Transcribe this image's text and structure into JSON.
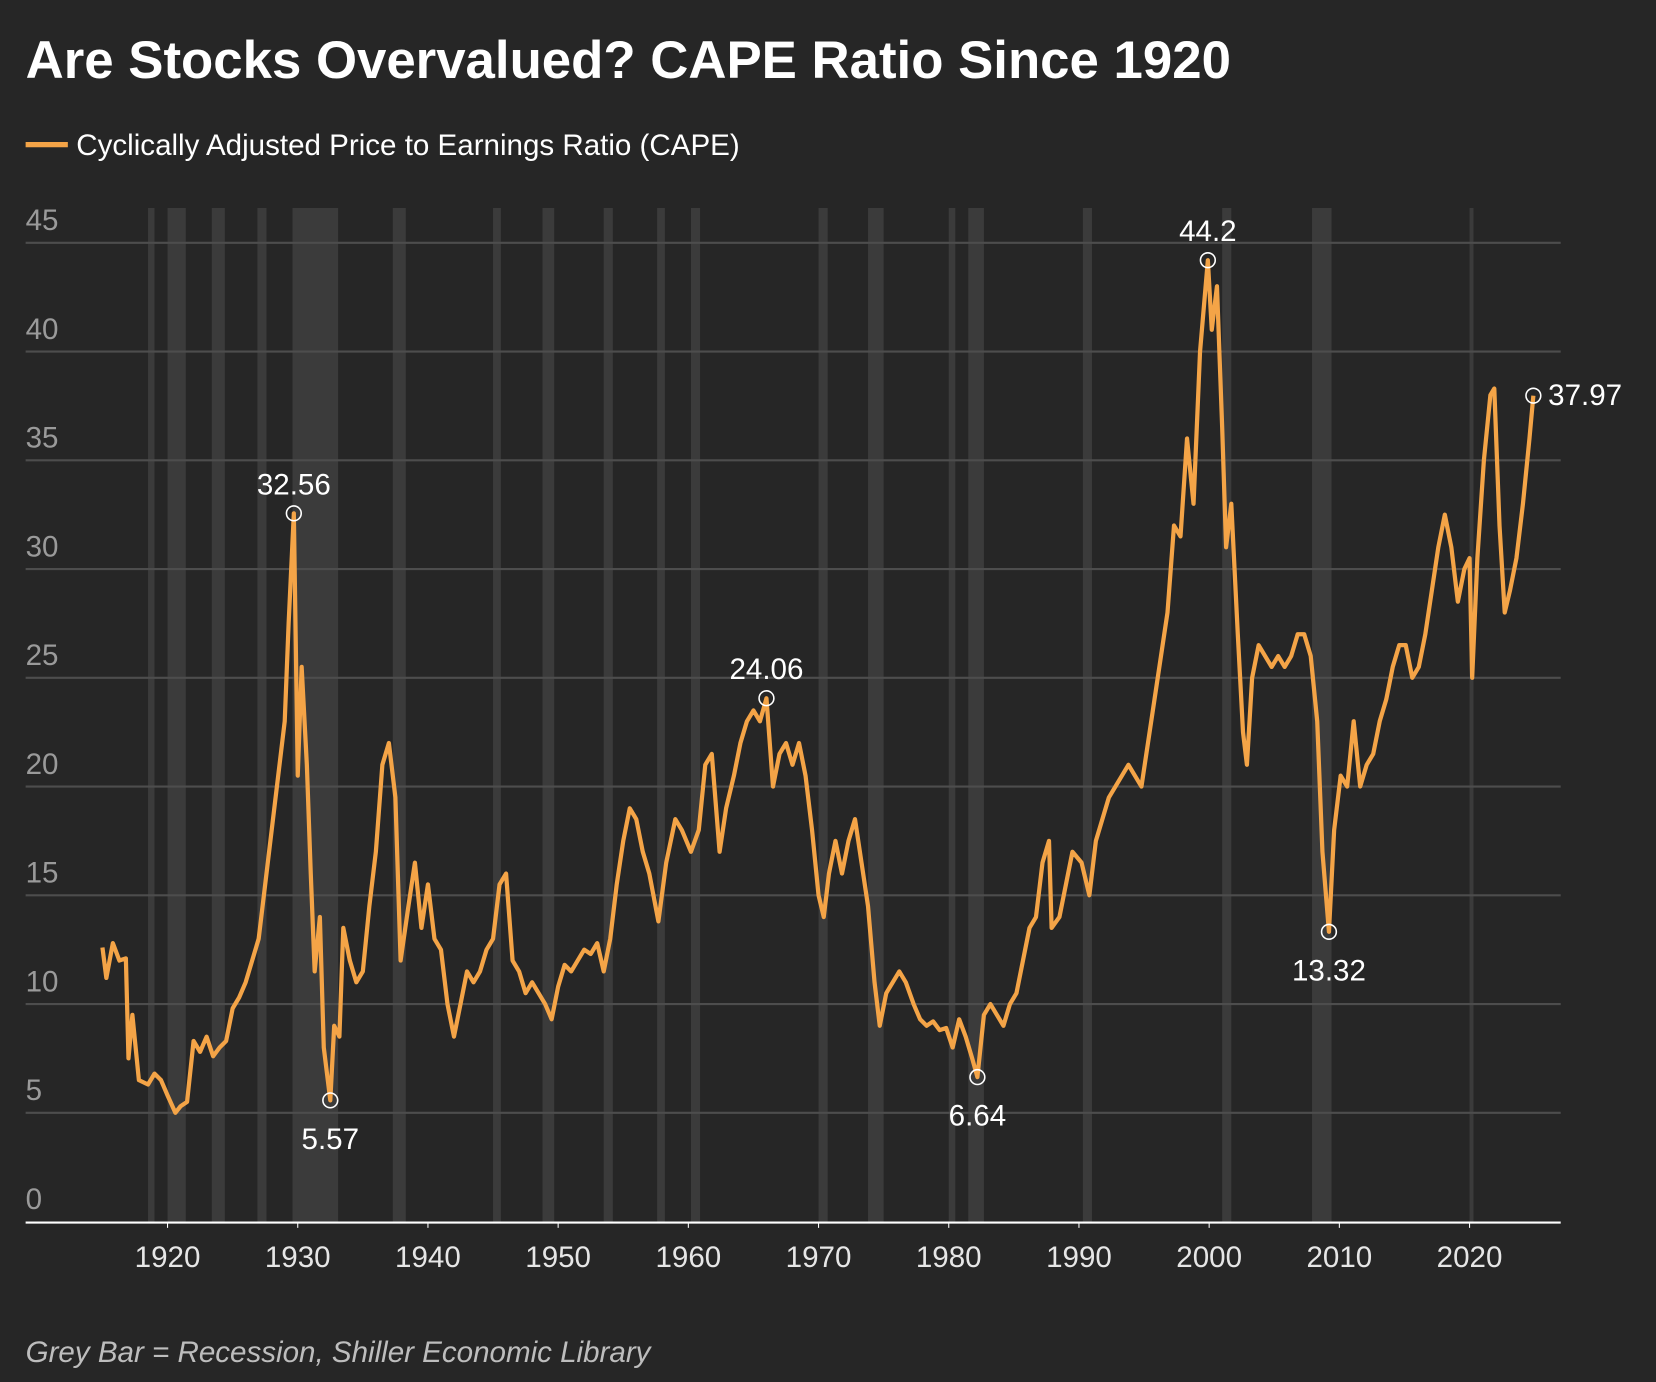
{
  "chart_data": {
    "type": "line",
    "title": "Are Stocks Overvalued? CAPE Ratio Since 1920",
    "footnote": "Grey Bar = Recession, Shiller Economic Library",
    "xlim": [
      1909.1,
      2027
    ],
    "xticks": [
      1920,
      1930,
      1940,
      1950,
      1960,
      1970,
      1980,
      1990,
      2000,
      2010,
      2020
    ],
    "ylim": [
      0,
      46.6
    ],
    "yticks": [
      0,
      5,
      10,
      15,
      20,
      25,
      30,
      35,
      40,
      45
    ],
    "grid": true,
    "legend": "top-left",
    "recession_color": "#3b3b3b",
    "recessions": [
      [
        1918.5,
        1919.0
      ],
      [
        1920.0,
        1921.4
      ],
      [
        1923.4,
        1924.4
      ],
      [
        1926.9,
        1927.6
      ],
      [
        1929.6,
        1933.1
      ],
      [
        1937.3,
        1938.3
      ],
      [
        1945.0,
        1945.6
      ],
      [
        1948.8,
        1949.7
      ],
      [
        1953.5,
        1954.2
      ],
      [
        1957.6,
        1958.2
      ],
      [
        1960.2,
        1960.9
      ],
      [
        1970.0,
        1970.7
      ],
      [
        1973.8,
        1975.0
      ],
      [
        1980.0,
        1980.5
      ],
      [
        1981.5,
        1982.7
      ],
      [
        1990.3,
        1991.0
      ],
      [
        2001.0,
        2001.7
      ],
      [
        2007.9,
        2009.4
      ],
      [
        2020.0,
        2020.3
      ]
    ],
    "x": [
      1915.0,
      1915.3,
      1915.8,
      1916.3,
      1916.8,
      1917.0,
      1917.3,
      1917.8,
      1918.5,
      1919.0,
      1919.5,
      1920.0,
      1920.6,
      1921.0,
      1921.5,
      1922.0,
      1922.5,
      1923.0,
      1923.5,
      1924.0,
      1924.5,
      1925.0,
      1925.5,
      1926.0,
      1926.5,
      1927.0,
      1927.5,
      1928.0,
      1928.5,
      1929.0,
      1929.3,
      1929.7,
      1930.0,
      1930.3,
      1930.7,
      1931.0,
      1931.3,
      1931.7,
      1932.0,
      1932.5,
      1932.8,
      1933.2,
      1933.5,
      1934.0,
      1934.5,
      1935.0,
      1935.5,
      1936.0,
      1936.5,
      1937.0,
      1937.5,
      1937.9,
      1938.5,
      1939.0,
      1939.5,
      1940.0,
      1940.5,
      1941.0,
      1941.5,
      1942.0,
      1942.5,
      1943.0,
      1943.5,
      1944.0,
      1944.5,
      1945.0,
      1945.5,
      1946.0,
      1946.5,
      1947.0,
      1947.5,
      1948.0,
      1948.5,
      1949.0,
      1949.5,
      1950.0,
      1950.5,
      1951.0,
      1951.5,
      1952.0,
      1952.5,
      1953.0,
      1953.5,
      1954.0,
      1954.5,
      1955.0,
      1955.5,
      1956.0,
      1956.5,
      1957.0,
      1957.7,
      1958.3,
      1959.0,
      1959.5,
      1960.2,
      1960.8,
      1961.3,
      1961.8,
      1962.4,
      1962.9,
      1963.5,
      1964.0,
      1964.5,
      1965.0,
      1965.5,
      1966.0,
      1966.5,
      1967.0,
      1967.5,
      1968.0,
      1968.5,
      1969.0,
      1969.5,
      1970.0,
      1970.4,
      1970.8,
      1971.3,
      1971.8,
      1972.3,
      1972.8,
      1973.3,
      1973.8,
      1974.3,
      1974.7,
      1975.2,
      1975.7,
      1976.2,
      1976.7,
      1977.3,
      1977.8,
      1978.3,
      1978.8,
      1979.3,
      1979.8,
      1980.3,
      1980.8,
      1981.3,
      1981.8,
      1982.2,
      1982.7,
      1983.2,
      1983.7,
      1984.2,
      1984.7,
      1985.2,
      1985.7,
      1986.2,
      1986.7,
      1987.2,
      1987.7,
      1987.9,
      1988.5,
      1989.0,
      1989.5,
      1990.2,
      1990.8,
      1991.3,
      1991.8,
      1992.3,
      1992.8,
      1993.3,
      1993.8,
      1994.3,
      1994.8,
      1995.3,
      1995.8,
      1996.3,
      1996.8,
      1997.3,
      1997.8,
      1998.3,
      1998.8,
      1999.3,
      1999.9,
      2000.2,
      2000.6,
      2001.0,
      2001.3,
      2001.7,
      2002.2,
      2002.6,
      2002.9,
      2003.3,
      2003.8,
      2004.3,
      2004.8,
      2005.3,
      2005.8,
      2006.3,
      2006.8,
      2007.3,
      2007.8,
      2008.3,
      2008.7,
      2009.2,
      2009.6,
      2010.1,
      2010.6,
      2011.1,
      2011.6,
      2012.1,
      2012.6,
      2013.1,
      2013.6,
      2014.1,
      2014.6,
      2015.1,
      2015.6,
      2016.1,
      2016.6,
      2017.1,
      2017.6,
      2018.1,
      2018.6,
      2019.1,
      2019.6,
      2020.0,
      2020.2,
      2020.6,
      2021.1,
      2021.6,
      2021.9,
      2022.3,
      2022.7,
      2023.1,
      2023.6,
      2024.1,
      2024.6,
      2024.9
    ],
    "series": [
      {
        "name": "Cyclically Adjusted Price to Earnings Ratio (CAPE)",
        "color": "#f4a447",
        "values": [
          12.6,
          11.2,
          12.8,
          12.0,
          12.1,
          7.5,
          9.5,
          6.5,
          6.3,
          6.8,
          6.5,
          5.8,
          5.0,
          5.3,
          5.5,
          8.3,
          7.8,
          8.5,
          7.6,
          8.0,
          8.3,
          9.8,
          10.3,
          11.0,
          12.0,
          13.0,
          15.5,
          18.0,
          20.5,
          23.0,
          27.5,
          32.56,
          20.5,
          25.5,
          21.0,
          16.0,
          11.5,
          14.0,
          8.0,
          5.57,
          9.0,
          8.5,
          13.5,
          12.0,
          11.0,
          11.5,
          14.5,
          17.0,
          21.0,
          22.0,
          19.5,
          12.0,
          14.5,
          16.5,
          13.5,
          15.5,
          13.0,
          12.5,
          10.0,
          8.5,
          10.0,
          11.5,
          11.0,
          11.5,
          12.5,
          13.0,
          15.5,
          16.0,
          12.0,
          11.5,
          10.5,
          11.0,
          10.5,
          10.0,
          9.3,
          10.8,
          11.8,
          11.5,
          12.0,
          12.5,
          12.3,
          12.8,
          11.5,
          13.0,
          15.5,
          17.5,
          19.0,
          18.5,
          17.0,
          16.0,
          13.8,
          16.5,
          18.5,
          18.0,
          17.0,
          18.0,
          21.0,
          21.5,
          17.0,
          19.0,
          20.5,
          22.0,
          23.0,
          23.5,
          23.0,
          24.06,
          20.0,
          21.5,
          22.0,
          21.0,
          22.0,
          20.5,
          18.0,
          15.0,
          14.0,
          16.0,
          17.5,
          16.0,
          17.5,
          18.5,
          16.5,
          14.5,
          11.0,
          9.0,
          10.5,
          11.0,
          11.5,
          11.0,
          10.0,
          9.3,
          9.0,
          9.2,
          8.8,
          8.9,
          8.0,
          9.3,
          8.5,
          7.5,
          6.64,
          9.5,
          10.0,
          9.5,
          9.0,
          10.0,
          10.5,
          12.0,
          13.5,
          14.0,
          16.5,
          17.5,
          13.5,
          14.0,
          15.5,
          17.0,
          16.5,
          15.0,
          17.5,
          18.5,
          19.5,
          20.0,
          20.5,
          21.0,
          20.5,
          20.0,
          22.0,
          24.0,
          26.0,
          28.0,
          32.0,
          31.5,
          36.0,
          33.0,
          40.0,
          44.2,
          41.0,
          43.0,
          36.5,
          31.0,
          33.0,
          27.0,
          22.5,
          21.0,
          25.0,
          26.5,
          26.0,
          25.5,
          26.0,
          25.5,
          26.0,
          27.0,
          27.0,
          26.0,
          23.0,
          17.0,
          13.32,
          18.0,
          20.5,
          20.0,
          23.0,
          20.0,
          21.0,
          21.5,
          23.0,
          24.0,
          25.5,
          26.5,
          26.5,
          25.0,
          25.5,
          27.0,
          29.0,
          31.0,
          32.5,
          31.0,
          28.5,
          30.0,
          30.5,
          25.0,
          30.5,
          35.0,
          38.0,
          38.3,
          32.0,
          28.0,
          29.0,
          30.5,
          33.0,
          36.0,
          37.97
        ]
      }
    ],
    "annotations": [
      {
        "x": 1929.7,
        "y": 32.56
      },
      {
        "x": 1932.5,
        "y": 5.57
      },
      {
        "x": 1966.0,
        "y": 24.06
      },
      {
        "x": 1982.2,
        "y": 6.64
      },
      {
        "x": 1999.9,
        "y": 44.2
      },
      {
        "x": 2009.2,
        "y": 13.32
      },
      {
        "x": 2024.9,
        "y": 37.97
      }
    ]
  }
}
